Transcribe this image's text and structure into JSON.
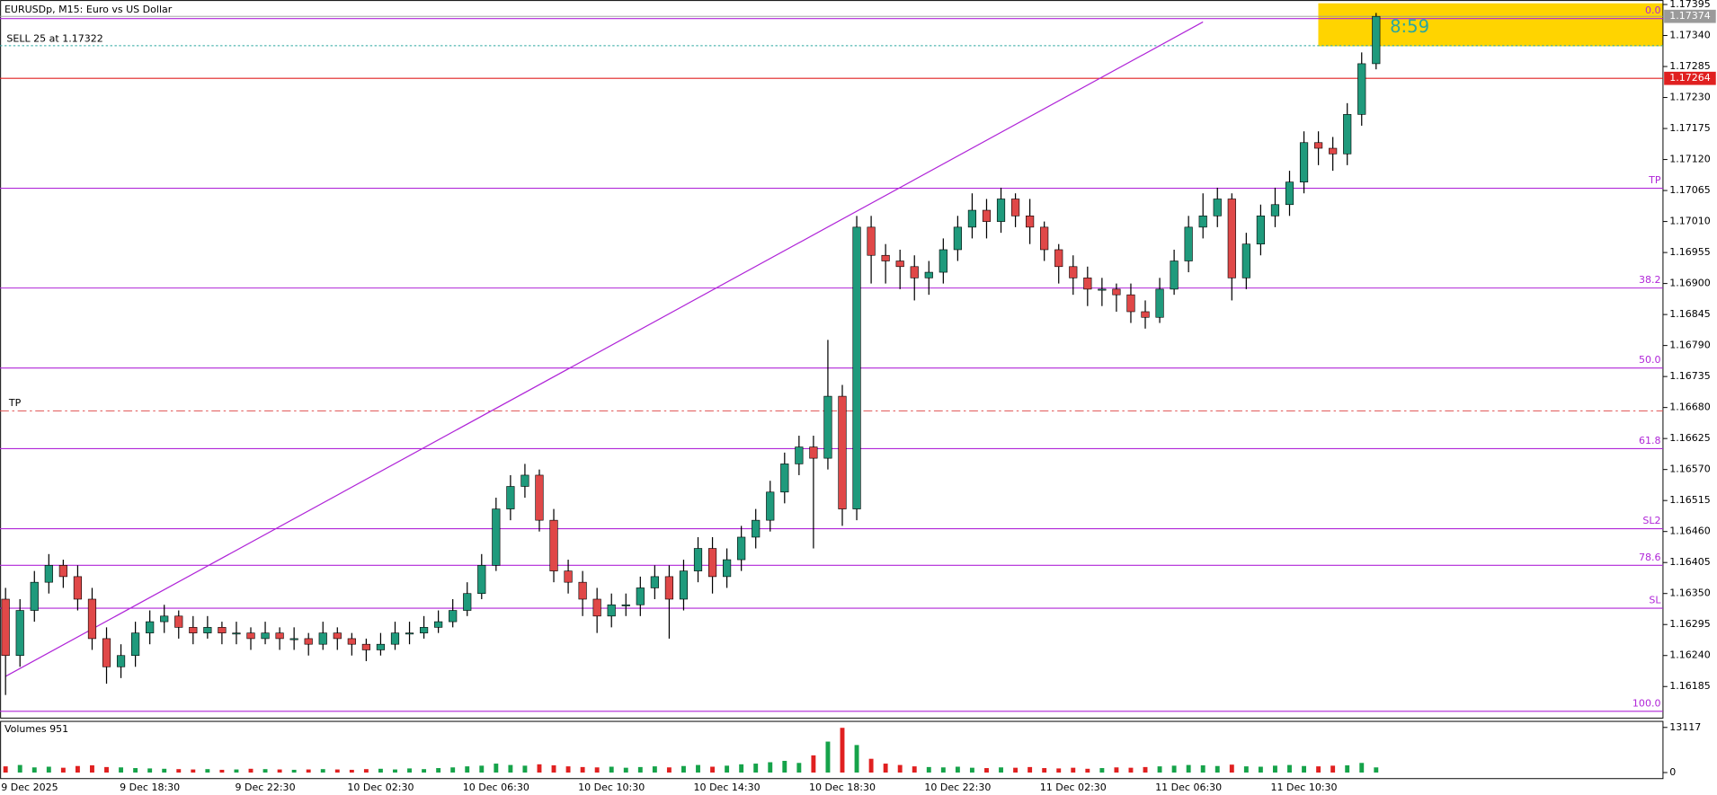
{
  "chart_data": {
    "type": "candlestick",
    "title": "EURUSDp, M15:  Euro vs US Dollar",
    "categories": [
      "9 Dec 2025",
      null,
      null,
      null,
      null,
      null,
      null,
      null,
      null,
      null,
      "9 Dec 18:30",
      null,
      null,
      null,
      null,
      null,
      null,
      null,
      "9 Dec 22:30",
      null,
      null,
      null,
      null,
      null,
      null,
      null,
      "10 Dec 02:30",
      null,
      null,
      null,
      null,
      null,
      null,
      null,
      "10 Dec 06:30",
      null,
      null,
      null,
      null,
      null,
      null,
      null,
      "10 Dec 10:30",
      null,
      null,
      null,
      null,
      null,
      null,
      null,
      "10 Dec 14:30",
      null,
      null,
      null,
      null,
      null,
      null,
      null,
      "10 Dec 18:30",
      null,
      null,
      null,
      null,
      null,
      null,
      null,
      "10 Dec 22:30",
      null,
      null,
      null,
      null,
      null,
      null,
      null,
      "11 Dec 02:30",
      null,
      null,
      null,
      null,
      null,
      null,
      null,
      "11 Dec 06:30",
      null,
      null,
      null,
      null,
      null,
      null,
      null,
      "11 Dec 10:30",
      null,
      null,
      null,
      null,
      null
    ],
    "open": [
      1.1634,
      1.1624,
      1.1632,
      1.1637,
      1.164,
      1.1638,
      1.1634,
      1.1627,
      1.1622,
      1.1624,
      1.1628,
      1.163,
      1.1631,
      1.1629,
      1.1628,
      1.1629,
      1.1628,
      1.1628,
      1.1627,
      1.1628,
      1.1627,
      1.1627,
      1.1626,
      1.1628,
      1.1627,
      1.1626,
      1.1625,
      1.1626,
      1.1628,
      1.1628,
      1.1629,
      1.163,
      1.1632,
      1.1635,
      1.164,
      1.165,
      1.1654,
      1.1656,
      1.1648,
      1.1639,
      1.1637,
      1.1634,
      1.1631,
      1.1633,
      1.1633,
      1.1636,
      1.1638,
      1.1634,
      1.1639,
      1.1643,
      1.1638,
      1.1641,
      1.1645,
      1.1648,
      1.1653,
      1.1658,
      1.1661,
      1.1659,
      1.167,
      1.165,
      1.17,
      1.1695,
      1.1694,
      1.1693,
      1.1691,
      1.1692,
      1.1696,
      1.17,
      1.1703,
      1.1701,
      1.1705,
      1.1702,
      1.17,
      1.1696,
      1.1693,
      1.1691,
      1.1689,
      1.1689,
      1.1688,
      1.1685,
      1.1684,
      1.1689,
      1.1694,
      1.17,
      1.1702,
      1.1705,
      1.1691,
      1.1697,
      1.1702,
      1.1704,
      1.1708,
      1.1715,
      1.1714,
      1.1713,
      1.172,
      1.1729
    ],
    "high": [
      1.1636,
      1.1634,
      1.1639,
      1.1642,
      1.1641,
      1.164,
      1.1636,
      1.1629,
      1.1626,
      1.163,
      1.1632,
      1.1633,
      1.1632,
      1.1631,
      1.1631,
      1.163,
      1.163,
      1.1629,
      1.163,
      1.1629,
      1.1629,
      1.1628,
      1.163,
      1.1629,
      1.1628,
      1.1627,
      1.1628,
      1.163,
      1.163,
      1.1631,
      1.1632,
      1.1634,
      1.1637,
      1.1642,
      1.1652,
      1.1656,
      1.1658,
      1.1657,
      1.165,
      1.1641,
      1.1639,
      1.1636,
      1.1635,
      1.1635,
      1.1638,
      1.164,
      1.164,
      1.1641,
      1.1645,
      1.1645,
      1.1643,
      1.1647,
      1.165,
      1.1655,
      1.166,
      1.1663,
      1.1663,
      1.168,
      1.1672,
      1.1702,
      1.1702,
      1.1697,
      1.1696,
      1.1695,
      1.1694,
      1.1698,
      1.1702,
      1.1706,
      1.1705,
      1.1707,
      1.1706,
      1.1705,
      1.1701,
      1.1697,
      1.1695,
      1.1693,
      1.1691,
      1.169,
      1.169,
      1.1687,
      1.1691,
      1.1696,
      1.1702,
      1.1706,
      1.1707,
      1.1706,
      1.1699,
      1.1704,
      1.1707,
      1.171,
      1.1717,
      1.1717,
      1.1716,
      1.1722,
      1.1731,
      1.1738
    ],
    "low": [
      1.1617,
      1.1622,
      1.163,
      1.1635,
      1.1636,
      1.1632,
      1.1625,
      1.1619,
      1.162,
      1.1622,
      1.1626,
      1.1628,
      1.1627,
      1.1626,
      1.1627,
      1.1626,
      1.1626,
      1.1625,
      1.1626,
      1.1625,
      1.1625,
      1.1624,
      1.1625,
      1.1625,
      1.1624,
      1.1623,
      1.1624,
      1.1625,
      1.1626,
      1.1627,
      1.1628,
      1.1629,
      1.1631,
      1.1634,
      1.1639,
      1.1648,
      1.1652,
      1.1646,
      1.1637,
      1.1635,
      1.1631,
      1.1628,
      1.1629,
      1.1631,
      1.1631,
      1.1634,
      1.1627,
      1.1632,
      1.1637,
      1.1635,
      1.1636,
      1.1639,
      1.1643,
      1.1646,
      1.1651,
      1.1656,
      1.1643,
      1.1657,
      1.1647,
      1.1648,
      1.169,
      1.169,
      1.1689,
      1.1687,
      1.1688,
      1.169,
      1.1694,
      1.1698,
      1.1698,
      1.1699,
      1.17,
      1.1697,
      1.1694,
      1.169,
      1.1688,
      1.1686,
      1.1686,
      1.1685,
      1.1683,
      1.1682,
      1.1683,
      1.1688,
      1.1692,
      1.1698,
      1.17,
      1.1687,
      1.1689,
      1.1695,
      1.17,
      1.1702,
      1.1706,
      1.1711,
      1.171,
      1.1711,
      1.1718,
      1.1728
    ],
    "close": [
      1.1624,
      1.1632,
      1.1637,
      1.164,
      1.1638,
      1.1634,
      1.1627,
      1.1622,
      1.1624,
      1.1628,
      1.163,
      1.1631,
      1.1629,
      1.1628,
      1.1629,
      1.1628,
      1.1628,
      1.1627,
      1.1628,
      1.1627,
      1.1627,
      1.1626,
      1.1628,
      1.1627,
      1.1626,
      1.1625,
      1.1626,
      1.1628,
      1.1628,
      1.1629,
      1.163,
      1.1632,
      1.1635,
      1.164,
      1.165,
      1.1654,
      1.1656,
      1.1648,
      1.1639,
      1.1637,
      1.1634,
      1.1631,
      1.1633,
      1.1633,
      1.1636,
      1.1638,
      1.1634,
      1.1639,
      1.1643,
      1.1638,
      1.1641,
      1.1645,
      1.1648,
      1.1653,
      1.1658,
      1.1661,
      1.1659,
      1.167,
      1.165,
      1.17,
      1.1695,
      1.1694,
      1.1693,
      1.1691,
      1.1692,
      1.1696,
      1.17,
      1.1703,
      1.1701,
      1.1705,
      1.1702,
      1.17,
      1.1696,
      1.1693,
      1.1691,
      1.1689,
      1.1689,
      1.1688,
      1.1685,
      1.1684,
      1.1689,
      1.1694,
      1.17,
      1.1702,
      1.1705,
      1.1691,
      1.1697,
      1.1702,
      1.1704,
      1.1708,
      1.1715,
      1.1714,
      1.1713,
      1.172,
      1.1729,
      1.17374
    ],
    "up_color": "#1f9a7c",
    "down_color": "#e04848",
    "ylim": [
      1.1613,
      1.17403
    ],
    "yticks": [
      1.17395,
      {
        "value": 1.1734,
        "label": "1.17340"
      },
      1.17285,
      {
        "value": 1.1723,
        "label": "1.17230"
      },
      1.17175,
      {
        "value": 1.1712,
        "label": "1.17120"
      },
      1.17065,
      {
        "value": 1.1701,
        "label": "1.17010"
      },
      1.16955,
      {
        "value": 1.169,
        "label": "1.16900"
      },
      1.16845,
      {
        "value": 1.1679,
        "label": "1.16790"
      },
      1.16735,
      {
        "value": 1.1668,
        "label": "1.16680"
      },
      1.16625,
      {
        "value": 1.1657,
        "label": "1.16570"
      },
      1.16515,
      {
        "value": 1.1646,
        "label": "1.16460"
      },
      1.16405,
      {
        "value": 1.1635,
        "label": "1.16350"
      },
      1.16295,
      {
        "value": 1.1624,
        "label": "1.16240"
      },
      1.16185
    ],
    "volume": {
      "label": "Volumes 951",
      "color_up": "#16a34a",
      "color_down": "#e02020",
      "values": [
        1800,
        2200,
        1500,
        1700,
        1400,
        1900,
        2100,
        1600,
        1500,
        1300,
        1200,
        1100,
        1000,
        900,
        1000,
        800,
        900,
        1100,
        1000,
        900,
        800,
        900,
        1000,
        900,
        800,
        1000,
        1100,
        900,
        1200,
        1000,
        1300,
        1500,
        1800,
        2000,
        2600,
        2200,
        2000,
        2400,
        2100,
        1800,
        1600,
        1500,
        1700,
        1400,
        1600,
        1800,
        1500,
        1900,
        2200,
        1700,
        2000,
        2400,
        2600,
        3000,
        3400,
        2800,
        5000,
        9000,
        13000,
        8000,
        4000,
        2600,
        2200,
        1800,
        1600,
        1500,
        1700,
        1400,
        1300,
        1500,
        1400,
        1600,
        1300,
        1200,
        1400,
        1100,
        1300,
        1500,
        1400,
        1600,
        1800,
        2000,
        2200,
        2100,
        1900,
        2300,
        1800,
        1700,
        2000,
        2200,
        1900,
        1800,
        2000,
        2100,
        2800,
        1500
      ],
      "ylim": [
        0,
        13117
      ],
      "yticks": [
        13117,
        0
      ]
    },
    "levels": [
      {
        "label": "0.0",
        "value": 1.1737
      },
      {
        "label": "TP",
        "value": 1.17069
      },
      {
        "label": "38.2",
        "value": 1.16892
      },
      {
        "label": "50.0",
        "value": 1.1675
      },
      {
        "label": "61.8",
        "value": 1.16607
      },
      {
        "label": "SL2",
        "value": 1.16465
      },
      {
        "label": "78.6",
        "value": 1.164
      },
      {
        "label": "SL",
        "value": 1.16324
      },
      {
        "label": "100.0",
        "value": 1.16141
      }
    ],
    "level_color": "#b026d8",
    "bid": 1.17374,
    "stop": 1.17264,
    "order": {
      "label": "SELL 25 at 1.17322",
      "value": 1.17322
    },
    "tp_line": {
      "label": "TP",
      "value": 1.16674
    },
    "trendline": {
      "x": [
        0,
        83
      ],
      "y": [
        1.16203,
        1.17364
      ]
    },
    "timer": "8:59"
  }
}
